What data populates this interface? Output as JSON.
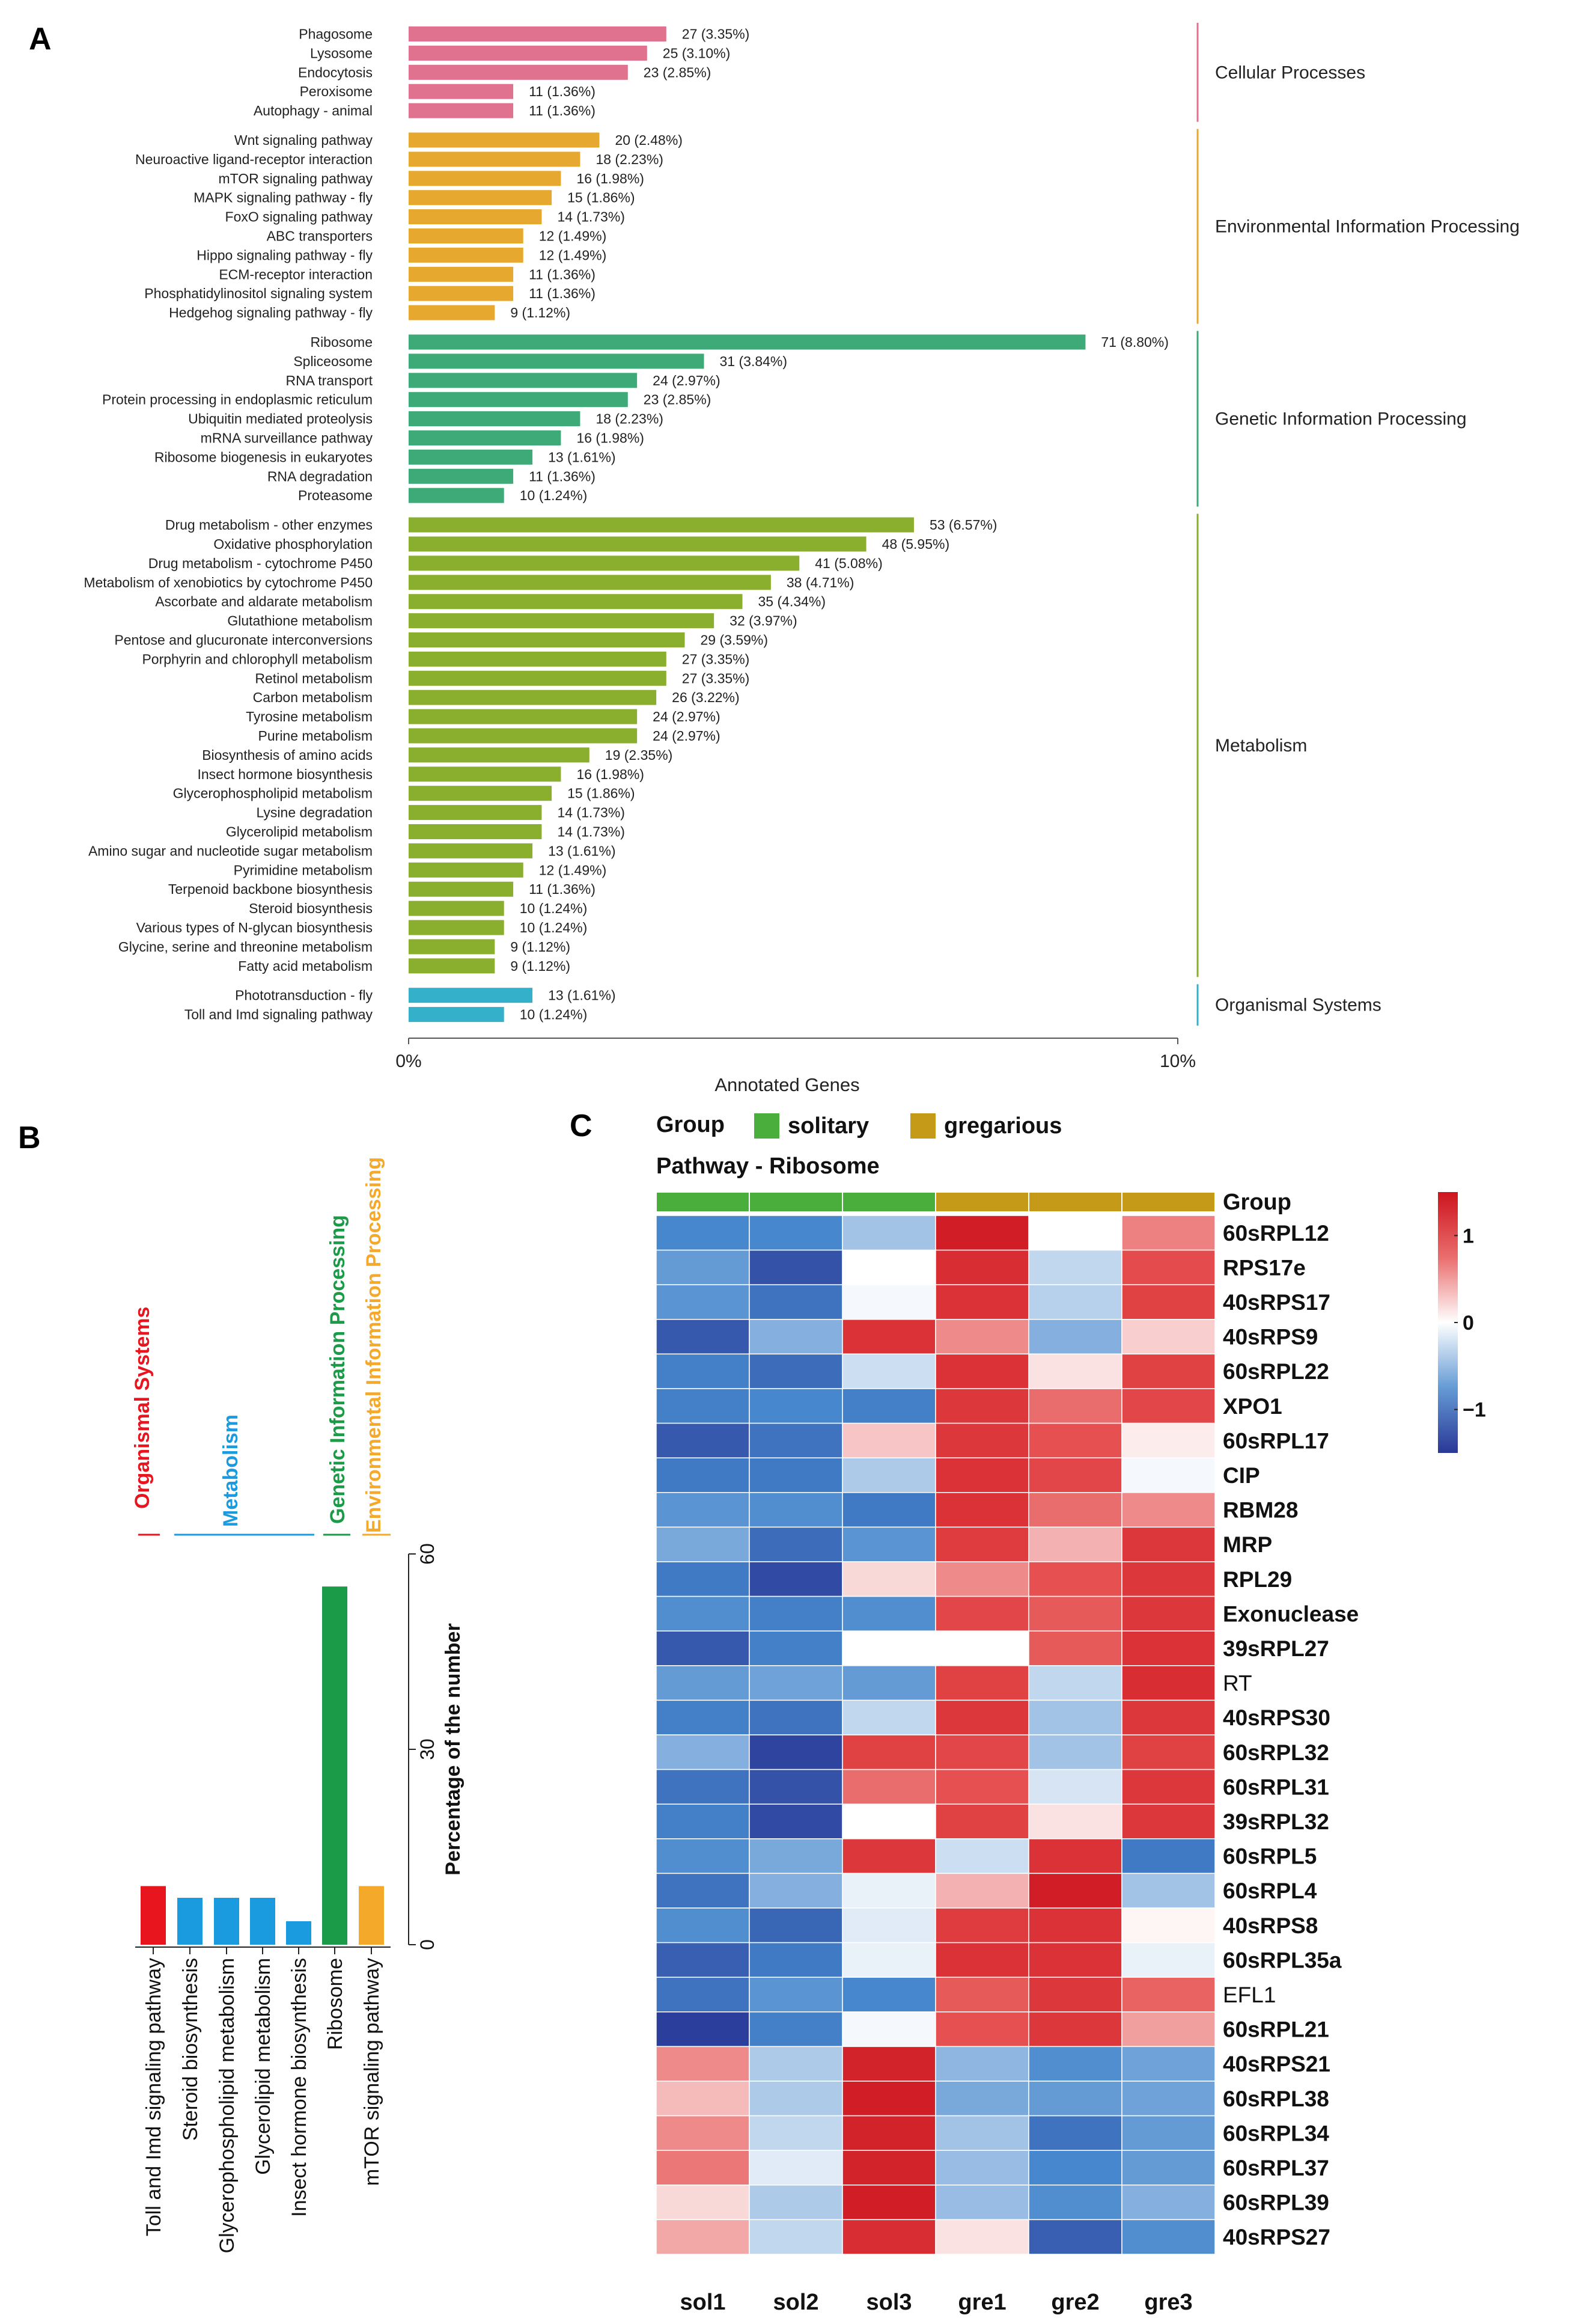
{
  "panel_labels": {
    "a": "A",
    "b": "B",
    "c": "C"
  },
  "chart_data": [
    {
      "type": "bar",
      "orientation": "horizontal",
      "panel": "A",
      "title": "",
      "xlabel": "Annotated Genes",
      "xticks": [
        "0%",
        "10%"
      ],
      "xlim": [
        0,
        10
      ],
      "groups": [
        {
          "name": "Cellular Processes",
          "color": "#E0718F",
          "items": [
            {
              "label": "Phagosome",
              "count": 27,
              "percent": 3.35,
              "text": "27 (3.35%)"
            },
            {
              "label": "Lysosome",
              "count": 25,
              "percent": 3.1,
              "text": "25 (3.10%)"
            },
            {
              "label": "Endocytosis",
              "count": 23,
              "percent": 2.85,
              "text": "23 (2.85%)"
            },
            {
              "label": "Peroxisome",
              "count": 11,
              "percent": 1.36,
              "text": "11 (1.36%)"
            },
            {
              "label": "Autophagy - animal",
              "count": 11,
              "percent": 1.36,
              "text": "11 (1.36%)"
            }
          ]
        },
        {
          "name": "Environmental Information Processing",
          "color": "#E6A82E",
          "items": [
            {
              "label": "Wnt signaling pathway",
              "count": 20,
              "percent": 2.48,
              "text": "20 (2.48%)"
            },
            {
              "label": "Neuroactive ligand-receptor interaction",
              "count": 18,
              "percent": 2.23,
              "text": "18 (2.23%)"
            },
            {
              "label": "mTOR signaling pathway",
              "count": 16,
              "percent": 1.98,
              "text": "16 (1.98%)"
            },
            {
              "label": "MAPK signaling pathway - fly",
              "count": 15,
              "percent": 1.86,
              "text": "15 (1.86%)"
            },
            {
              "label": "FoxO signaling pathway",
              "count": 14,
              "percent": 1.73,
              "text": "14 (1.73%)"
            },
            {
              "label": "ABC transporters",
              "count": 12,
              "percent": 1.49,
              "text": "12 (1.49%)"
            },
            {
              "label": "Hippo signaling pathway - fly",
              "count": 12,
              "percent": 1.49,
              "text": "12 (1.49%)"
            },
            {
              "label": "ECM-receptor interaction",
              "count": 11,
              "percent": 1.36,
              "text": "11 (1.36%)"
            },
            {
              "label": "Phosphatidylinositol signaling system",
              "count": 11,
              "percent": 1.36,
              "text": "11 (1.36%)"
            },
            {
              "label": "Hedgehog signaling pathway - fly",
              "count": 9,
              "percent": 1.12,
              "text": "9 (1.12%)"
            }
          ]
        },
        {
          "name": "Genetic Information Processing",
          "color": "#3DAA78",
          "items": [
            {
              "label": "Ribosome",
              "count": 71,
              "percent": 8.8,
              "text": "71 (8.80%)"
            },
            {
              "label": "Spliceosome",
              "count": 31,
              "percent": 3.84,
              "text": "31 (3.84%)"
            },
            {
              "label": "RNA transport",
              "count": 24,
              "percent": 2.97,
              "text": "24 (2.97%)"
            },
            {
              "label": "Protein processing in endoplasmic reticulum",
              "count": 23,
              "percent": 2.85,
              "text": "23 (2.85%)"
            },
            {
              "label": "Ubiquitin mediated proteolysis",
              "count": 18,
              "percent": 2.23,
              "text": "18 (2.23%)"
            },
            {
              "label": "mRNA surveillance pathway",
              "count": 16,
              "percent": 1.98,
              "text": "16 (1.98%)"
            },
            {
              "label": "Ribosome biogenesis in eukaryotes",
              "count": 13,
              "percent": 1.61,
              "text": "13 (1.61%)"
            },
            {
              "label": "RNA degradation",
              "count": 11,
              "percent": 1.36,
              "text": "11 (1.36%)"
            },
            {
              "label": "Proteasome",
              "count": 10,
              "percent": 1.24,
              "text": "10 (1.24%)"
            }
          ]
        },
        {
          "name": "Metabolism",
          "color": "#8AAE2E",
          "items": [
            {
              "label": "Drug metabolism - other enzymes",
              "count": 53,
              "percent": 6.57,
              "text": "53 (6.57%)"
            },
            {
              "label": "Oxidative phosphorylation",
              "count": 48,
              "percent": 5.95,
              "text": "48 (5.95%)"
            },
            {
              "label": "Drug metabolism - cytochrome P450",
              "count": 41,
              "percent": 5.08,
              "text": "41 (5.08%)"
            },
            {
              "label": "Metabolism of xenobiotics by cytochrome P450",
              "count": 38,
              "percent": 4.71,
              "text": "38 (4.71%)"
            },
            {
              "label": "Ascorbate and aldarate metabolism",
              "count": 35,
              "percent": 4.34,
              "text": "35 (4.34%)"
            },
            {
              "label": "Glutathione metabolism",
              "count": 32,
              "percent": 3.97,
              "text": "32 (3.97%)"
            },
            {
              "label": "Pentose and glucuronate interconversions",
              "count": 29,
              "percent": 3.59,
              "text": "29 (3.59%)"
            },
            {
              "label": "Porphyrin and chlorophyll metabolism",
              "count": 27,
              "percent": 3.35,
              "text": "27 (3.35%)"
            },
            {
              "label": "Retinol metabolism",
              "count": 27,
              "percent": 3.35,
              "text": "27 (3.35%)"
            },
            {
              "label": "Carbon metabolism",
              "count": 26,
              "percent": 3.22,
              "text": "26 (3.22%)"
            },
            {
              "label": "Tyrosine metabolism",
              "count": 24,
              "percent": 2.97,
              "text": "24 (2.97%)"
            },
            {
              "label": "Purine metabolism",
              "count": 24,
              "percent": 2.97,
              "text": "24 (2.97%)"
            },
            {
              "label": "Biosynthesis of amino acids",
              "count": 19,
              "percent": 2.35,
              "text": "19 (2.35%)"
            },
            {
              "label": "Insect hormone biosynthesis",
              "count": 16,
              "percent": 1.98,
              "text": "16 (1.98%)"
            },
            {
              "label": "Glycerophospholipid metabolism",
              "count": 15,
              "percent": 1.86,
              "text": "15 (1.86%)"
            },
            {
              "label": "Lysine degradation",
              "count": 14,
              "percent": 1.73,
              "text": "14 (1.73%)"
            },
            {
              "label": "Glycerolipid metabolism",
              "count": 14,
              "percent": 1.73,
              "text": "14 (1.73%)"
            },
            {
              "label": "Amino sugar and nucleotide sugar metabolism",
              "count": 13,
              "percent": 1.61,
              "text": "13 (1.61%)"
            },
            {
              "label": "Pyrimidine metabolism",
              "count": 12,
              "percent": 1.49,
              "text": "12 (1.49%)"
            },
            {
              "label": "Terpenoid backbone biosynthesis",
              "count": 11,
              "percent": 1.36,
              "text": "11 (1.36%)"
            },
            {
              "label": "Steroid biosynthesis",
              "count": 10,
              "percent": 1.24,
              "text": "10 (1.24%)"
            },
            {
              "label": "Various types of N-glycan biosynthesis",
              "count": 10,
              "percent": 1.24,
              "text": "10 (1.24%)"
            },
            {
              "label": "Glycine, serine and threonine metabolism",
              "count": 9,
              "percent": 1.12,
              "text": "9 (1.12%)"
            },
            {
              "label": "Fatty acid metabolism",
              "count": 9,
              "percent": 1.12,
              "text": "9 (1.12%)"
            }
          ]
        },
        {
          "name": "Organismal Systems",
          "color": "#34B0CB",
          "items": [
            {
              "label": "Phototransduction - fly",
              "count": 13,
              "percent": 1.61,
              "text": "13 (1.61%)"
            },
            {
              "label": "Toll and Imd signaling pathway",
              "count": 10,
              "percent": 1.24,
              "text": "10 (1.24%)"
            }
          ]
        }
      ]
    },
    {
      "type": "bar",
      "orientation": "vertical",
      "panel": "B",
      "ylabel": "Percentage of the number",
      "ylim": [
        0,
        60
      ],
      "yticks": [
        "0",
        "30",
        "60"
      ],
      "categories": [
        "Toll and Imd signaling pathway",
        "Steroid biosynthesis",
        "Glycerophospholipid metabolism",
        "Glycerolipid metabolism",
        "Insect hormone biosynthesis",
        "Ribosome",
        "mTOR signaling pathway"
      ],
      "values": [
        9,
        7.2,
        7.2,
        7.2,
        3.6,
        55,
        9
      ],
      "colors": [
        "#E8141E",
        "#1A9BE0",
        "#1A9BE0",
        "#1A9BE0",
        "#1A9BE0",
        "#1B9A48",
        "#F5A92A"
      ],
      "group_labels": [
        {
          "name": "Organismal Systems",
          "color": "#E8141E"
        },
        {
          "name": "Metabolism",
          "color": "#1A9BE0"
        },
        {
          "name": "Genetic Information Processing",
          "color": "#1B9A48"
        },
        {
          "name": "Environmental Information Processing",
          "color": "#F5A92A"
        }
      ]
    },
    {
      "type": "heatmap",
      "panel": "C",
      "legend_title": "Group",
      "legend": [
        {
          "name": "solitary",
          "color": "#4AAE3C"
        },
        {
          "name": "gregarious",
          "color": "#C49A18"
        }
      ],
      "subtitle": "Pathway - Ribosome",
      "group_row_label": "Group",
      "columns": [
        "sol1",
        "sol2",
        "sol3",
        "gre1",
        "gre2",
        "gre3"
      ],
      "column_groups": [
        "solitary",
        "solitary",
        "solitary",
        "gregarious",
        "gregarious",
        "gregarious"
      ],
      "colorbar_ticks": [
        1,
        0,
        -1
      ],
      "colorbar_tick_labels": [
        "1",
        "0",
        "−1"
      ],
      "value_range": [
        -1.5,
        1.5
      ],
      "rows": [
        {
          "gene": "60sRPL12",
          "bold": true,
          "values": [
            -0.9,
            -0.9,
            -0.45,
            1.4,
            0.0,
            0.65
          ]
        },
        {
          "gene": "RPS17e",
          "bold": true,
          "values": [
            -0.75,
            -1.3,
            0.0,
            1.25,
            -0.3,
            0.95
          ]
        },
        {
          "gene": "40sRPS17",
          "bold": true,
          "values": [
            -0.8,
            -1.05,
            -0.05,
            1.2,
            -0.35,
            1.05
          ]
        },
        {
          "gene": "40sRPS9",
          "bold": true,
          "values": [
            -1.25,
            -0.6,
            1.2,
            0.6,
            -0.6,
            0.25
          ]
        },
        {
          "gene": "60sRPL22",
          "bold": true,
          "values": [
            -0.95,
            -1.1,
            -0.25,
            1.2,
            0.15,
            1.05
          ]
        },
        {
          "gene": "XPO1",
          "bold": true,
          "values": [
            -0.95,
            -0.9,
            -0.95,
            1.15,
            0.75,
            1.0
          ]
        },
        {
          "gene": "60sRPL17",
          "bold": true,
          "values": [
            -1.25,
            -1.05,
            0.3,
            1.15,
            0.9,
            0.1
          ]
        },
        {
          "gene": "CIP",
          "bold": true,
          "values": [
            -1.0,
            -1.0,
            -0.4,
            1.2,
            1.0,
            -0.05
          ]
        },
        {
          "gene": "RBM28",
          "bold": true,
          "values": [
            -0.8,
            -0.85,
            -1.0,
            1.2,
            0.75,
            0.6
          ]
        },
        {
          "gene": "MRP",
          "bold": true,
          "values": [
            -0.65,
            -1.1,
            -0.8,
            1.1,
            0.4,
            1.15
          ]
        },
        {
          "gene": "RPL29",
          "bold": true,
          "values": [
            -1.0,
            -1.35,
            0.2,
            0.6,
            0.9,
            1.15
          ]
        },
        {
          "gene": "Exonuclease",
          "bold": true,
          "values": [
            -0.85,
            -0.95,
            -0.85,
            1.0,
            0.85,
            1.15
          ]
        },
        {
          "gene": "39sRPL27",
          "bold": true,
          "values": [
            -1.25,
            -0.95,
            0.0,
            0.0,
            0.85,
            1.2
          ]
        },
        {
          "gene": "RT",
          "bold": false,
          "values": [
            -0.75,
            -0.7,
            -0.75,
            1.05,
            -0.3,
            1.25
          ]
        },
        {
          "gene": "40sRPS30",
          "bold": true,
          "values": [
            -0.95,
            -1.05,
            -0.3,
            1.15,
            -0.45,
            1.15
          ]
        },
        {
          "gene": "60sRPL32",
          "bold": true,
          "values": [
            -0.6,
            -1.4,
            1.05,
            1.0,
            -0.45,
            1.05
          ]
        },
        {
          "gene": "60sRPL31",
          "bold": true,
          "values": [
            -1.05,
            -1.3,
            0.75,
            0.9,
            -0.2,
            1.15
          ]
        },
        {
          "gene": "39sRPL32",
          "bold": true,
          "values": [
            -0.95,
            -1.35,
            0.0,
            1.05,
            0.15,
            1.15
          ]
        },
        {
          "gene": "60sRPL5",
          "bold": true,
          "values": [
            -0.85,
            -0.65,
            1.15,
            -0.25,
            1.2,
            -1.0
          ]
        },
        {
          "gene": "60sRPL4",
          "bold": true,
          "values": [
            -1.05,
            -0.6,
            -0.1,
            0.4,
            1.4,
            -0.45
          ]
        },
        {
          "gene": "40sRPS8",
          "bold": true,
          "values": [
            -0.85,
            -1.15,
            -0.15,
            1.1,
            1.2,
            0.05
          ]
        },
        {
          "gene": "60sRPL35a",
          "bold": true,
          "values": [
            -1.2,
            -1.0,
            -0.1,
            1.2,
            1.2,
            -0.1
          ]
        },
        {
          "gene": "EFL1",
          "bold": false,
          "values": [
            -1.05,
            -0.8,
            -0.9,
            0.85,
            1.15,
            0.8
          ]
        },
        {
          "gene": "60sRPL21",
          "bold": true,
          "values": [
            -1.45,
            -0.95,
            -0.05,
            0.9,
            1.15,
            0.5
          ]
        },
        {
          "gene": "40sRPS21",
          "bold": true,
          "values": [
            0.6,
            -0.4,
            1.35,
            -0.55,
            -0.85,
            -0.7
          ]
        },
        {
          "gene": "60sRPL38",
          "bold": true,
          "values": [
            0.35,
            -0.4,
            1.4,
            -0.65,
            -0.75,
            -0.7
          ]
        },
        {
          "gene": "60sRPL34",
          "bold": true,
          "values": [
            0.6,
            -0.3,
            1.35,
            -0.45,
            -1.05,
            -0.75
          ]
        },
        {
          "gene": "60sRPL37",
          "bold": true,
          "values": [
            0.7,
            -0.15,
            1.35,
            -0.5,
            -0.9,
            -0.75
          ]
        },
        {
          "gene": "60sRPL39",
          "bold": true,
          "values": [
            0.2,
            -0.4,
            1.4,
            -0.5,
            -0.85,
            -0.6
          ]
        },
        {
          "gene": "40sRPS27",
          "bold": true,
          "values": [
            0.45,
            -0.3,
            1.25,
            0.15,
            -1.2,
            -0.85
          ]
        }
      ]
    }
  ]
}
